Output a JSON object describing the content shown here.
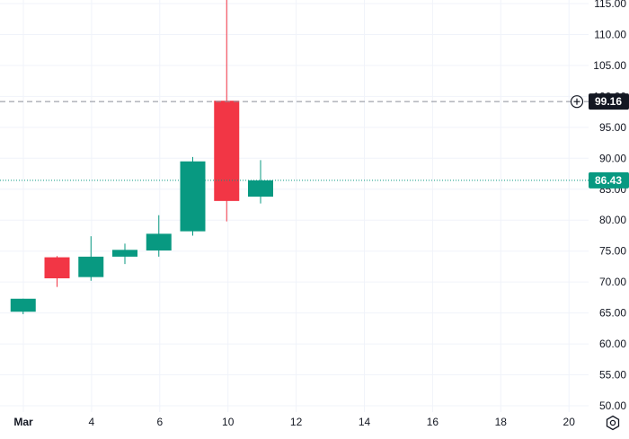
{
  "chart_data": {
    "type": "candlestick",
    "title": "",
    "xlabel": "",
    "ylabel": "",
    "x_ticks": [
      "Mar",
      "4",
      "6",
      "10",
      "12",
      "14",
      "16",
      "18",
      "20"
    ],
    "y_ticks": [
      "50.00",
      "55.00",
      "60.00",
      "65.00",
      "70.00",
      "75.00",
      "80.00",
      "85.00",
      "90.00",
      "95.00",
      "100.00",
      "105.00",
      "110.00",
      "115.00"
    ],
    "ylim": [
      50,
      115
    ],
    "grid": true,
    "candles": [
      {
        "day": 0,
        "open": 65.2,
        "high": 67.3,
        "low": 64.8,
        "close": 67.3
      },
      {
        "day": 1,
        "open": 74.0,
        "high": 74.2,
        "low": 69.2,
        "close": 70.6
      },
      {
        "day": 2,
        "open": 70.8,
        "high": 77.4,
        "low": 70.2,
        "close": 74.1
      },
      {
        "day": 3,
        "open": 74.1,
        "high": 76.2,
        "low": 72.9,
        "close": 75.2
      },
      {
        "day": 4,
        "open": 75.1,
        "high": 80.8,
        "low": 74.1,
        "close": 77.8
      },
      {
        "day": 5,
        "open": 78.2,
        "high": 90.2,
        "low": 77.5,
        "close": 89.5
      },
      {
        "day": 6,
        "open": 99.3,
        "high": 115.6,
        "low": 79.8,
        "close": 83.1
      },
      {
        "day": 7,
        "open": 83.8,
        "high": 89.7,
        "low": 82.7,
        "close": 86.43
      }
    ],
    "price_lines": [
      {
        "value": 99.16,
        "label": "99.16",
        "style": "dashed",
        "color": "#131722"
      },
      {
        "value": 86.43,
        "label": "86.43",
        "style": "dotted",
        "color": "#089981"
      }
    ],
    "colors": {
      "up": "#089981",
      "down": "#f23645",
      "grid": "#f0f3fa",
      "text": "#131722"
    }
  },
  "icons": {
    "crosshair_plus": "plus-circle-icon",
    "settings": "gear-icon"
  }
}
